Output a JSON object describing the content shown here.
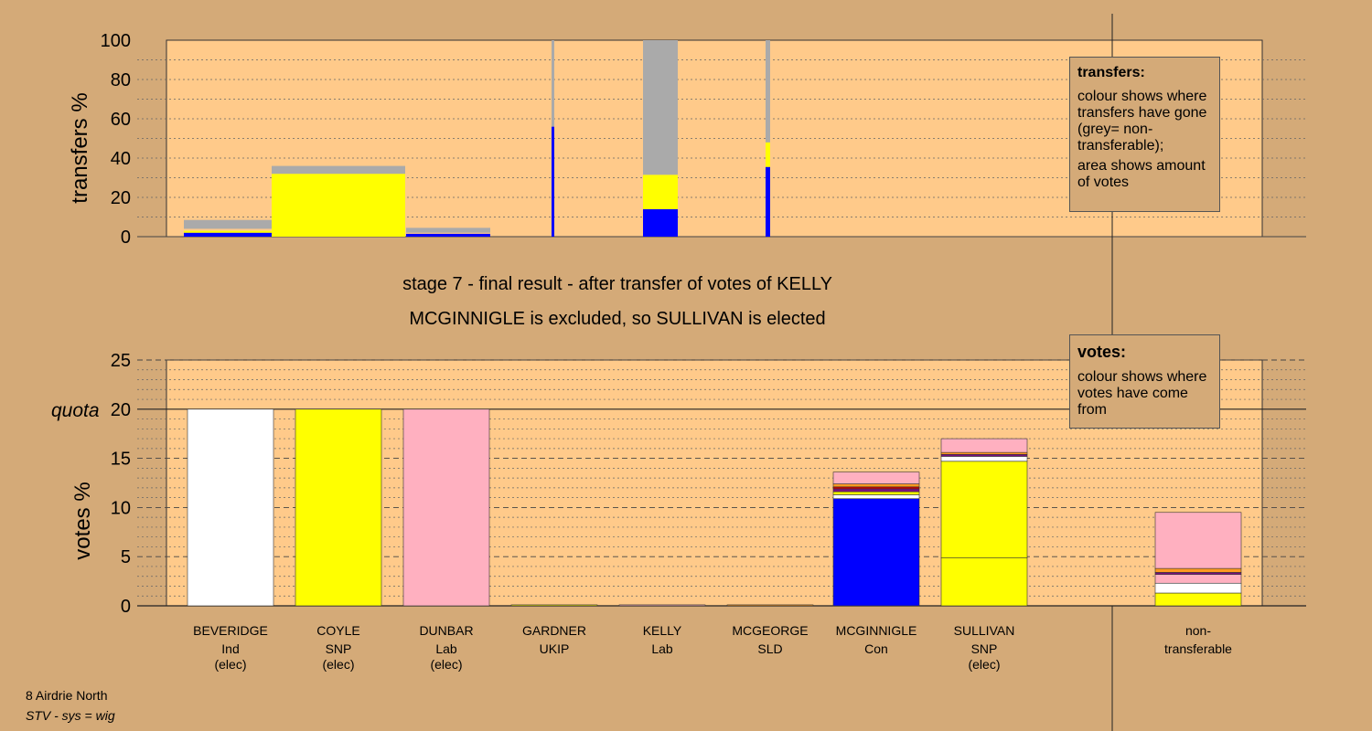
{
  "colors": {
    "page": "#d4aa78",
    "panel": "#ffca8a",
    "grey": "#aaaaaa",
    "blue": "#0000ff",
    "yellow": "#ffff00",
    "pink": "#ffb0c0",
    "white": "#ffffff",
    "orange": "#ff9a20",
    "red": "#cc0000",
    "purple": "#7a1080"
  },
  "headings": {
    "line1": "stage 7 - final result - after transfer of votes of KELLY",
    "line2": "MCGINNIGLE is excluded, so SULLIVAN is elected"
  },
  "footer": {
    "ward": "8 Airdrie North",
    "system": "STV - sys = wig"
  },
  "legend_transfers": {
    "title": "transfers:",
    "p1": "colour shows where transfers have gone (grey= non-transferable);",
    "p2": "area shows amount of votes"
  },
  "legend_votes": {
    "title": "votes:",
    "p1": "colour shows where votes have come from"
  },
  "chart_data": [
    {
      "type": "bar",
      "id": "transfers",
      "ylabel": "transfers %",
      "ylim": [
        0,
        100
      ],
      "yticks": [
        0,
        20,
        40,
        60,
        80,
        100
      ],
      "note": "stacked bars, width proportional to amount of votes transferred",
      "series_colors": {
        "blue": "MCGINNIGLE",
        "yellow": "SULLIVAN",
        "grey": "non-transferable"
      },
      "bars": [
        {
          "label": "",
          "segments": [
            {
              "color": "blue",
              "value": 2
            },
            {
              "color": "yellow",
              "value": 1
            },
            {
              "color": "peach",
              "value": 1
            },
            {
              "color": "grey",
              "value": 4.5
            }
          ]
        },
        {
          "label": "",
          "segments": [
            {
              "color": "yellow",
              "value": 32
            },
            {
              "color": "grey",
              "value": 4
            }
          ]
        },
        {
          "label": "",
          "segments": [
            {
              "color": "blue",
              "value": 1.5
            },
            {
              "color": "peach",
              "value": 0.5
            },
            {
              "color": "grey",
              "value": 2.5
            }
          ]
        },
        {
          "label": "",
          "segments": [
            {
              "color": "blue",
              "value": 56
            },
            {
              "color": "grey",
              "value": 44
            }
          ]
        },
        {
          "label": "",
          "segments": [
            {
              "color": "blue",
              "value": 14
            },
            {
              "color": "yellow",
              "value": 17.5
            },
            {
              "color": "grey",
              "value": 68.5
            }
          ]
        },
        {
          "label": "",
          "segments": [
            {
              "color": "blue",
              "value": 35.5
            },
            {
              "color": "yellow",
              "value": 12.5
            },
            {
              "color": "grey",
              "value": 52
            }
          ]
        }
      ]
    },
    {
      "type": "bar",
      "id": "votes",
      "ylabel": "votes %",
      "ylim": [
        0,
        25
      ],
      "yticks": [
        0,
        5,
        10,
        15,
        20,
        25
      ],
      "quota": 20,
      "quota_label": "quota",
      "categories": [
        {
          "name": "BEVERIDGE",
          "party": "Ind",
          "status": "(elec)"
        },
        {
          "name": "COYLE",
          "party": "SNP",
          "status": "(elec)"
        },
        {
          "name": "DUNBAR",
          "party": "Lab",
          "status": "(elec)"
        },
        {
          "name": "GARDNER",
          "party": "UKIP",
          "status": ""
        },
        {
          "name": "KELLY",
          "party": "Lab",
          "status": ""
        },
        {
          "name": "MCGEORGE",
          "party": "SLD",
          "status": ""
        },
        {
          "name": "MCGINNIGLE",
          "party": "Con",
          "status": ""
        },
        {
          "name": "SULLIVAN",
          "party": "SNP",
          "status": "(elec)"
        },
        {
          "name": "non-",
          "party": "transferable",
          "status": ""
        }
      ],
      "bars": [
        {
          "segments": [
            {
              "color": "white",
              "value": 20
            }
          ]
        },
        {
          "segments": [
            {
              "color": "yellow",
              "value": 20
            }
          ]
        },
        {
          "segments": [
            {
              "color": "pink",
              "value": 20
            }
          ]
        },
        {
          "segments": [
            {
              "color": "yellow",
              "value": 0.1
            }
          ]
        },
        {
          "segments": [
            {
              "color": "pink",
              "value": 0.1
            }
          ]
        },
        {
          "segments": [
            {
              "color": "orange",
              "value": 0.1
            }
          ]
        },
        {
          "segments": [
            {
              "color": "blue",
              "value": 10.9
            },
            {
              "color": "white",
              "value": 0.4
            },
            {
              "color": "yellow",
              "value": 0.3
            },
            {
              "color": "purple",
              "value": 0.3
            },
            {
              "color": "red",
              "value": 0.2
            },
            {
              "color": "orange",
              "value": 0.3
            },
            {
              "color": "pink",
              "value": 1.2
            }
          ]
        },
        {
          "segments": [
            {
              "color": "yellow",
              "value": 4.9
            },
            {
              "color": "yellow",
              "value": 9.8
            },
            {
              "color": "white",
              "value": 0.5
            },
            {
              "color": "purple",
              "value": 0.2
            },
            {
              "color": "orange",
              "value": 0.2
            },
            {
              "color": "pink",
              "value": 1.4
            }
          ]
        },
        {
          "segments": [
            {
              "color": "yellow",
              "value": 1.3
            },
            {
              "color": "white",
              "value": 1.0
            },
            {
              "color": "pink",
              "value": 0.9
            },
            {
              "color": "purple",
              "value": 0.2
            },
            {
              "color": "orange",
              "value": 0.4
            },
            {
              "color": "pink",
              "value": 5.7
            }
          ]
        }
      ]
    }
  ]
}
